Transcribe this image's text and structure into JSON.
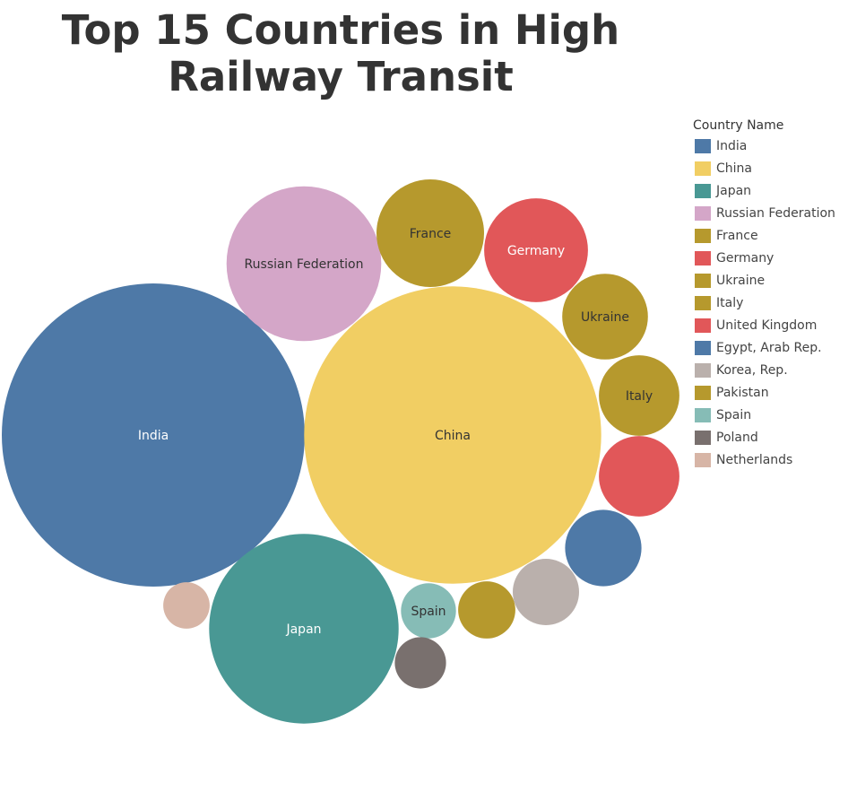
{
  "chart_data": {
    "type": "bubble",
    "title_lines": [
      "Top 15 Countries in High",
      "Railway Transit"
    ],
    "legend_title": "Country Name",
    "legend_placement": "right",
    "series": [
      {
        "name": "India",
        "color": "#4e79a7",
        "label_color": "#ffffff",
        "value": 1150,
        "show_label": true
      },
      {
        "name": "China",
        "color": "#f1ce63",
        "label_color": "#333333",
        "value": 1105,
        "show_label": true
      },
      {
        "name": "Japan",
        "color": "#499894",
        "label_color": "#ffffff",
        "value": 450,
        "show_label": true
      },
      {
        "name": "Russian Federation",
        "color": "#d4a6c8",
        "label_color": "#333333",
        "value": 300,
        "show_label": true
      },
      {
        "name": "France",
        "color": "#b6992d",
        "label_color": "#333333",
        "value": 145,
        "show_label": true
      },
      {
        "name": "Germany",
        "color": "#e15759",
        "label_color": "#ffffff",
        "value": 135,
        "show_label": true
      },
      {
        "name": "Ukraine",
        "color": "#b6992d",
        "label_color": "#333333",
        "value": 92,
        "show_label": true
      },
      {
        "name": "Italy",
        "color": "#b6992d",
        "label_color": "#333333",
        "value": 81,
        "show_label": true
      },
      {
        "name": "United Kingdom",
        "color": "#e15759",
        "label_color": "#ffffff",
        "value": 81,
        "show_label": false
      },
      {
        "name": "Egypt, Arab Rep.",
        "color": "#4e79a7",
        "label_color": "#ffffff",
        "value": 73,
        "show_label": false
      },
      {
        "name": "Korea, Rep.",
        "color": "#bab0ac",
        "label_color": "#333333",
        "value": 55,
        "show_label": false
      },
      {
        "name": "Pakistan",
        "color": "#b6992d",
        "label_color": "#333333",
        "value": 41,
        "show_label": false
      },
      {
        "name": "Spain",
        "color": "#86bcb6",
        "label_color": "#333333",
        "value": 38,
        "show_label": true
      },
      {
        "name": "Poland",
        "color": "#79706e",
        "label_color": "#ffffff",
        "value": 33,
        "show_label": false
      },
      {
        "name": "Netherlands",
        "color": "#d7b5a6",
        "label_color": "#333333",
        "value": 27,
        "show_label": false
      }
    ]
  }
}
